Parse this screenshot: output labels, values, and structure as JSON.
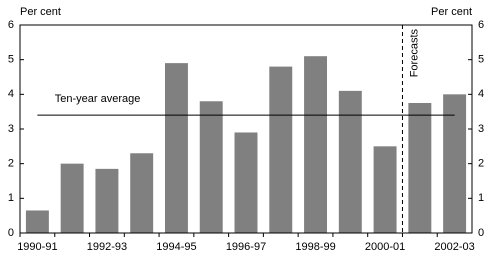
{
  "chart_data": {
    "type": "bar",
    "y_label": "Per cent",
    "y2_label": "Per cent",
    "categories": [
      "1990-91",
      null,
      "1992-93",
      null,
      "1994-95",
      null,
      "1996-97",
      null,
      "1998-99",
      null,
      "2000-01",
      null,
      "2002-03"
    ],
    "values": [
      0.65,
      2.0,
      1.85,
      2.3,
      4.9,
      3.8,
      2.9,
      4.8,
      5.1,
      4.1,
      2.5,
      3.75,
      4.0
    ],
    "color": "#808080",
    "ylim": [
      0,
      6
    ],
    "yticks": [
      0,
      1,
      2,
      3,
      4,
      5,
      6
    ],
    "y2lim": [
      0,
      6
    ],
    "y2ticks": [
      0,
      1,
      2,
      3,
      4,
      5,
      6
    ],
    "average": {
      "label": "Ten-year average",
      "value": 3.4
    },
    "forecast_label": "Forecasts"
  }
}
